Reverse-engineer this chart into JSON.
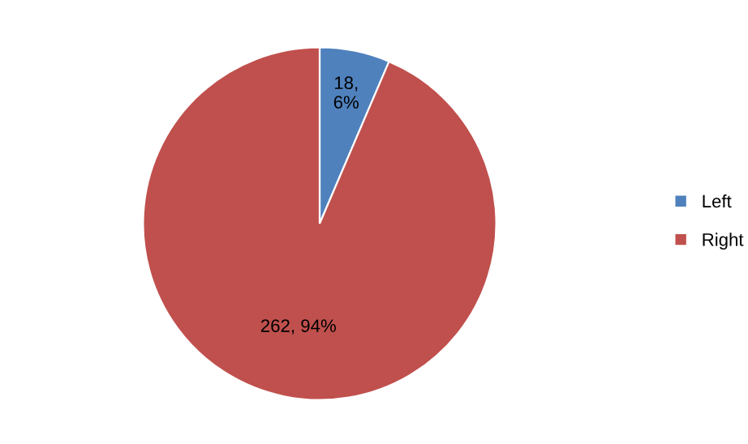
{
  "chart_data": {
    "type": "pie",
    "categories": [
      "Left",
      "Right"
    ],
    "values": [
      18,
      262
    ],
    "colors": [
      "#4f81bd",
      "#c0504d"
    ],
    "value_labels": [
      "18, 6%",
      "262, 94%"
    ],
    "legend": "right"
  }
}
